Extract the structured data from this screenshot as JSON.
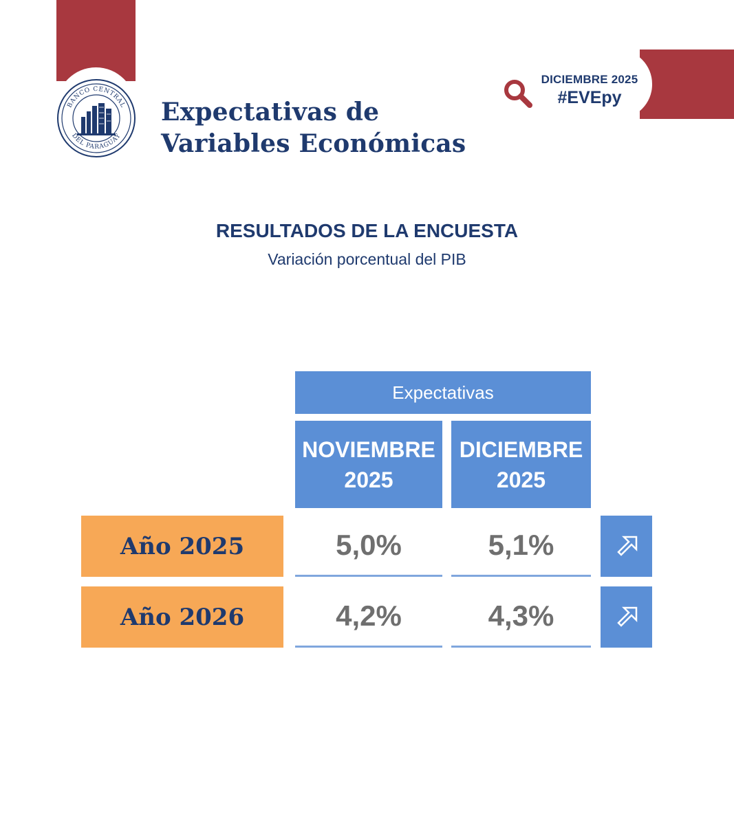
{
  "header": {
    "logo_text_top": "BANCO CENTRAL",
    "logo_text_bottom": "DEL PARAGUAY",
    "title_line1": "Expectativas de",
    "title_line2": "Variables Económicas",
    "date": "DICIEMBRE 2025",
    "hashtag": "#EVEpy"
  },
  "section": {
    "title": "RESULTADOS DE LA ENCUESTA",
    "subtitle": "Variación porcentual del PIB"
  },
  "table": {
    "group_header": "Expectativas",
    "columns": [
      {
        "line1": "NOVIEMBRE",
        "line2": "2025"
      },
      {
        "line1": "DICIEMBRE",
        "line2": "2025"
      }
    ],
    "rows": [
      {
        "label": "Año 2025",
        "values": [
          "5,0%",
          "5,1%"
        ],
        "trend_icon": "arrow-up-right-icon"
      },
      {
        "label": "Año 2026",
        "values": [
          "4,2%",
          "4,3%"
        ],
        "trend_icon": "arrow-up-right-icon"
      }
    ]
  },
  "colors": {
    "brand_red": "#a8383f",
    "navy": "#1f3a6e",
    "header_blue": "#5b8fd6",
    "label_orange": "#f7a856",
    "value_gray": "#6f6f6f"
  }
}
